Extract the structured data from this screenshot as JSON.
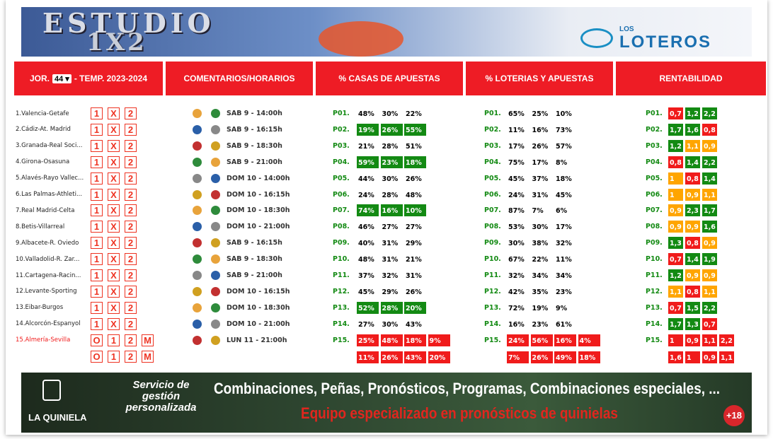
{
  "header": {
    "title": "ESTUDIO",
    "subtitle": "1X2",
    "logo_small": "LOS",
    "logo": "LOTEROS"
  },
  "tabs": {
    "jornada_label": "JOR.",
    "jornada": "44",
    "temporada": "- TEMP. 2023-2024",
    "comentarios": "COMENTARIOS/HORARIOS",
    "casas": "% CASAS DE APUESTAS",
    "loterias": "% LOTERIAS Y APUESTAS",
    "rentabilidad": "RENTABILIDAD"
  },
  "rows": [
    {
      "match": "1.Valencia-Getafe",
      "picks": [
        [
          "1",
          "X",
          "2"
        ]
      ],
      "time": "SAB 9 - 14:00h",
      "pleno": "P01.",
      "casas": [
        [
          "48%",
          "30%",
          "22%"
        ]
      ],
      "loterias": [
        [
          "65%",
          "25%",
          "10%"
        ]
      ],
      "rent": [
        [
          "0,7",
          "1,2",
          "2,2"
        ]
      ],
      "rent_colors": [
        [
          "#f01b1b",
          "#138a13",
          "#138a13"
        ]
      ]
    },
    {
      "match": "2.Cádiz-At. Madrid",
      "picks": [
        [
          "1",
          "X",
          "2"
        ]
      ],
      "time": "SAB 9 - 16:15h",
      "pleno": "P02.",
      "casas": [
        [
          "19%",
          "26%",
          "55%"
        ]
      ],
      "casas_color": "#138a13",
      "loterias": [
        [
          "11%",
          "16%",
          "73%"
        ]
      ],
      "rent": [
        [
          "1,7",
          "1,6",
          "0,8"
        ]
      ],
      "rent_colors": [
        [
          "#138a13",
          "#138a13",
          "#f01b1b"
        ]
      ]
    },
    {
      "match": "3.Granada-Real Soci...",
      "picks": [
        [
          "1",
          "X",
          "2"
        ]
      ],
      "time": "SAB 9 - 18:30h",
      "pleno": "P03.",
      "casas": [
        [
          "21%",
          "28%",
          "51%"
        ]
      ],
      "loterias": [
        [
          "17%",
          "26%",
          "57%"
        ]
      ],
      "rent": [
        [
          "1,2",
          "1,1",
          "0,9"
        ]
      ],
      "rent_colors": [
        [
          "#138a13",
          "#ffa500",
          "#ffa500"
        ]
      ]
    },
    {
      "match": "4.Girona-Osasuna",
      "picks": [
        [
          "1",
          "X",
          "2"
        ]
      ],
      "time": "SAB 9 - 21:00h",
      "pleno": "P04.",
      "casas": [
        [
          "59%",
          "23%",
          "18%"
        ]
      ],
      "casas_color": "#138a13",
      "loterias": [
        [
          "75%",
          "17%",
          "8%"
        ]
      ],
      "rent": [
        [
          "0,8",
          "1,4",
          "2,2"
        ]
      ],
      "rent_colors": [
        [
          "#f01b1b",
          "#138a13",
          "#138a13"
        ]
      ]
    },
    {
      "match": "5.Alavés-Rayo Vallec...",
      "picks": [
        [
          "1",
          "X",
          "2"
        ]
      ],
      "time": "DOM 10 - 14:00h",
      "pleno": "P05.",
      "casas": [
        [
          "44%",
          "30%",
          "26%"
        ]
      ],
      "loterias": [
        [
          "45%",
          "37%",
          "18%"
        ]
      ],
      "rent": [
        [
          "1",
          "0,8",
          "1,4"
        ]
      ],
      "rent_colors": [
        [
          "#ffa500",
          "#f01b1b",
          "#138a13"
        ]
      ]
    },
    {
      "match": "6.Las Palmas-Athleti...",
      "picks": [
        [
          "1",
          "X",
          "2"
        ]
      ],
      "time": "DOM 10 - 16:15h",
      "pleno": "P06.",
      "casas": [
        [
          "24%",
          "28%",
          "48%"
        ]
      ],
      "loterias": [
        [
          "24%",
          "31%",
          "45%"
        ]
      ],
      "rent": [
        [
          "1",
          "0,9",
          "1,1"
        ]
      ],
      "rent_colors": [
        [
          "#ffa500",
          "#ffa500",
          "#ffa500"
        ]
      ]
    },
    {
      "match": "7.Real Madrid-Celta",
      "picks": [
        [
          "1",
          "X",
          "2"
        ]
      ],
      "time": "DOM 10 - 18:30h",
      "pleno": "P07.",
      "casas": [
        [
          "74%",
          "16%",
          "10%"
        ]
      ],
      "casas_color": "#138a13",
      "loterias": [
        [
          "87%",
          "7%",
          "6%"
        ]
      ],
      "rent": [
        [
          "0,9",
          "2,3",
          "1,7"
        ]
      ],
      "rent_colors": [
        [
          "#ffa500",
          "#138a13",
          "#138a13"
        ]
      ]
    },
    {
      "match": "8.Betis-Villarreal",
      "picks": [
        [
          "1",
          "X",
          "2"
        ]
      ],
      "time": "DOM 10 - 21:00h",
      "pleno": "P08.",
      "casas": [
        [
          "46%",
          "27%",
          "27%"
        ]
      ],
      "loterias": [
        [
          "53%",
          "30%",
          "17%"
        ]
      ],
      "rent": [
        [
          "0,9",
          "0,9",
          "1,6"
        ]
      ],
      "rent_colors": [
        [
          "#ffa500",
          "#ffa500",
          "#138a13"
        ]
      ]
    },
    {
      "match": "9.Albacete-R. Oviedo",
      "picks": [
        [
          "1",
          "X",
          "2"
        ]
      ],
      "time": "SAB 9 - 16:15h",
      "pleno": "P09.",
      "casas": [
        [
          "40%",
          "31%",
          "29%"
        ]
      ],
      "loterias": [
        [
          "30%",
          "38%",
          "32%"
        ]
      ],
      "rent": [
        [
          "1,3",
          "0,8",
          "0,9"
        ]
      ],
      "rent_colors": [
        [
          "#138a13",
          "#f01b1b",
          "#ffa500"
        ]
      ]
    },
    {
      "match": "10.Valladolid-R. Zar...",
      "picks": [
        [
          "1",
          "X",
          "2"
        ]
      ],
      "time": "SAB 9 - 18:30h",
      "pleno": "P10.",
      "casas": [
        [
          "48%",
          "31%",
          "21%"
        ]
      ],
      "loterias": [
        [
          "67%",
          "22%",
          "11%"
        ]
      ],
      "rent": [
        [
          "0,7",
          "1,4",
          "1,9"
        ]
      ],
      "rent_colors": [
        [
          "#f01b1b",
          "#138a13",
          "#138a13"
        ]
      ]
    },
    {
      "match": "11.Cartagena-Racin...",
      "picks": [
        [
          "1",
          "X",
          "2"
        ]
      ],
      "time": "SAB 9 - 21:00h",
      "pleno": "P11.",
      "casas": [
        [
          "37%",
          "32%",
          "31%"
        ]
      ],
      "loterias": [
        [
          "32%",
          "34%",
          "34%"
        ]
      ],
      "rent": [
        [
          "1,2",
          "0,9",
          "0,9"
        ]
      ],
      "rent_colors": [
        [
          "#138a13",
          "#ffa500",
          "#ffa500"
        ]
      ]
    },
    {
      "match": "12.Levante-Sporting",
      "picks": [
        [
          "1",
          "X",
          "2"
        ]
      ],
      "time": "DOM 10 - 16:15h",
      "pleno": "P12.",
      "casas": [
        [
          "45%",
          "29%",
          "26%"
        ]
      ],
      "loterias": [
        [
          "42%",
          "35%",
          "23%"
        ]
      ],
      "rent": [
        [
          "1,1",
          "0,8",
          "1,1"
        ]
      ],
      "rent_colors": [
        [
          "#ffa500",
          "#f01b1b",
          "#ffa500"
        ]
      ]
    },
    {
      "match": "13.Eibar-Burgos",
      "picks": [
        [
          "1",
          "X",
          "2"
        ]
      ],
      "time": "DOM 10 - 18:30h",
      "pleno": "P13.",
      "casas": [
        [
          "52%",
          "28%",
          "20%"
        ]
      ],
      "casas_color": "#138a13",
      "loterias": [
        [
          "72%",
          "19%",
          "9%"
        ]
      ],
      "rent": [
        [
          "0,7",
          "1,5",
          "2,2"
        ]
      ],
      "rent_colors": [
        [
          "#f01b1b",
          "#138a13",
          "#138a13"
        ]
      ]
    },
    {
      "match": "14.Alcorcón-Espanyol",
      "picks": [
        [
          "1",
          "X",
          "2"
        ]
      ],
      "time": "DOM 10 - 21:00h",
      "pleno": "P14.",
      "casas": [
        [
          "27%",
          "30%",
          "43%"
        ]
      ],
      "loterias": [
        [
          "16%",
          "23%",
          "61%"
        ]
      ],
      "rent": [
        [
          "1,7",
          "1,3",
          "0,7"
        ]
      ],
      "rent_colors": [
        [
          "#138a13",
          "#138a13",
          "#f01b1b"
        ]
      ]
    },
    {
      "match": "15.Almería-Sevilla",
      "match_color": "#f01b1b",
      "picks": [
        [
          "O",
          "1",
          "2",
          "M"
        ],
        [
          "O",
          "1",
          "2",
          "M"
        ]
      ],
      "time": "LUN 11 - 21:00h",
      "pleno": "P15.",
      "casas": [
        [
          "25%",
          "48%",
          "18%",
          "9%"
        ],
        [
          "11%",
          "26%",
          "43%",
          "20%"
        ]
      ],
      "casas_color": "#f01b1b",
      "loterias": [
        [
          "24%",
          "56%",
          "16%",
          "4%"
        ],
        [
          "7%",
          "26%",
          "49%",
          "18%"
        ]
      ],
      "loterias_color": "#f01b1b",
      "rent": [
        [
          "1",
          "0,9",
          "1,1",
          "2,2"
        ],
        [
          "1,6",
          "1",
          "0,9",
          "1,1"
        ]
      ],
      "rent_colors": [
        [
          "#f01b1b",
          "#f01b1b",
          "#f01b1b",
          "#f01b1b"
        ],
        [
          "#f01b1b",
          "#f01b1b",
          "#f01b1b",
          "#f01b1b"
        ]
      ]
    }
  ],
  "footer": {
    "brand": "LA QUINIELA",
    "service": "Servicio de gestión personalizada",
    "headline": "Combinaciones, Peñas, Pronósticos, Programas, Combinaciones especiales, ...",
    "tagline": "Equipo especializado en pronósticos de quinielas",
    "age": "+18"
  }
}
